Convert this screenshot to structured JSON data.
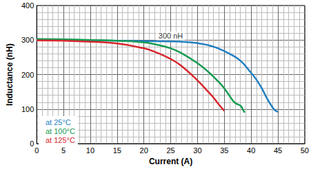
{
  "chart_data": {
    "type": "line",
    "x_label": "Current (A)",
    "y_label": "Inductance (nH)",
    "xlim": [
      0,
      50
    ],
    "xticks": [
      0,
      5,
      10,
      15,
      20,
      25,
      30,
      35,
      40,
      45,
      50
    ],
    "ylim": [
      0,
      400
    ],
    "yticks": [
      0,
      100,
      200,
      300,
      400
    ],
    "grid": true,
    "legend": "lower left",
    "annotations": [
      {
        "text": "300 nH",
        "x": 25,
        "y": 312
      }
    ],
    "series": [
      {
        "name": "at 25°C",
        "color": "#1f7fc2",
        "x": [
          0,
          5,
          10,
          15,
          20,
          25,
          28,
          30,
          32,
          34,
          36,
          38,
          40,
          41,
          42,
          43,
          44,
          44.5,
          45
        ],
        "values": [
          300,
          300,
          299,
          298,
          297,
          296,
          294,
          291,
          285,
          275,
          260,
          240,
          205,
          185,
          160,
          130,
          105,
          96,
          92
        ]
      },
      {
        "name": "at 100°C",
        "color": "#169c52",
        "x": [
          0,
          5,
          10,
          15,
          20,
          22,
          25,
          27,
          30,
          32,
          34,
          35,
          36,
          37,
          38,
          38.5,
          38.8
        ],
        "values": [
          303,
          302,
          300,
          298,
          293,
          288,
          276,
          262,
          233,
          208,
          178,
          160,
          138,
          118,
          110,
          98,
          90
        ]
      },
      {
        "name": "at 125°C",
        "color": "#d7262c",
        "x": [
          0,
          5,
          10,
          15,
          20,
          22,
          25,
          27,
          30,
          32,
          33,
          34,
          35
        ],
        "values": [
          299,
          298,
          295,
          290,
          276,
          266,
          245,
          225,
          183,
          150,
          133,
          113,
          95
        ]
      }
    ]
  }
}
